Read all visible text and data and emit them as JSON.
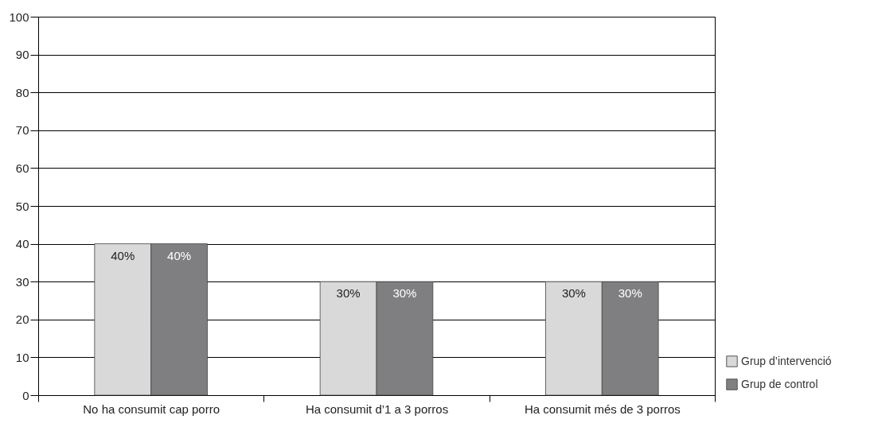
{
  "chart_data": {
    "type": "bar",
    "categories": [
      "No ha consumit cap porro",
      "Ha consumit d’1 a 3 porros",
      "Ha consumit més de 3 porros"
    ],
    "series": [
      {
        "name": "Grup d’intervenció",
        "color": "#d9d9d9",
        "values": [
          40,
          30,
          30
        ],
        "value_labels": [
          "40%",
          "30%",
          "30%"
        ]
      },
      {
        "name": "Grup de control",
        "color": "#7f7f82",
        "values": [
          40,
          30,
          30
        ],
        "value_labels": [
          "40%",
          "30%",
          "30%"
        ]
      }
    ],
    "ylim": [
      0,
      100
    ],
    "yticks": [
      0,
      10,
      20,
      30,
      40,
      50,
      60,
      70,
      80,
      90,
      100
    ],
    "grid": "y",
    "legend": "bottom right"
  }
}
